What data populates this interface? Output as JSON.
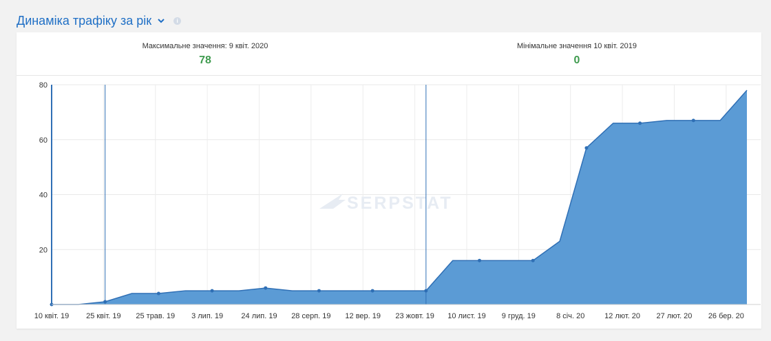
{
  "header": {
    "title": "Динаміка трафіку за рік",
    "icons": [
      "chevron-down-icon",
      "info-icon"
    ]
  },
  "stats": {
    "max": {
      "label": "Максимальне значення: 9 квіт. 2020",
      "value": "78"
    },
    "min": {
      "label": "Мінімальне значення 10 квіт. 2019",
      "value": "0"
    }
  },
  "watermark": "SERPSTAT",
  "chart_data": {
    "type": "area",
    "title": "",
    "xlabel": "",
    "ylabel": "",
    "ylim": [
      0,
      80
    ],
    "yticks": [
      20,
      40,
      60,
      80
    ],
    "grid": true,
    "color": "#5b9bd5",
    "line_color": "#2f6fb5",
    "x_tick_labels": [
      "10 квіт. 19",
      "25 квіт. 19",
      "25 трав. 19",
      "3 лип. 19",
      "24 лип. 19",
      "28 серп. 19",
      "12 вер. 19",
      "23 жовт. 19",
      "10 лист. 19",
      "9 груд. 19",
      "8 січ. 20",
      "12 лют. 20",
      "27 лют. 20",
      "26 бер. 20"
    ],
    "vertical_markers": [
      0,
      1,
      7
    ],
    "series": [
      {
        "values": [
          0,
          0,
          1,
          4,
          4,
          5,
          5,
          5,
          6,
          5,
          5,
          5,
          5,
          5,
          5,
          16,
          16,
          16,
          16,
          23,
          57,
          66,
          66,
          67,
          67,
          67,
          78
        ]
      }
    ]
  }
}
